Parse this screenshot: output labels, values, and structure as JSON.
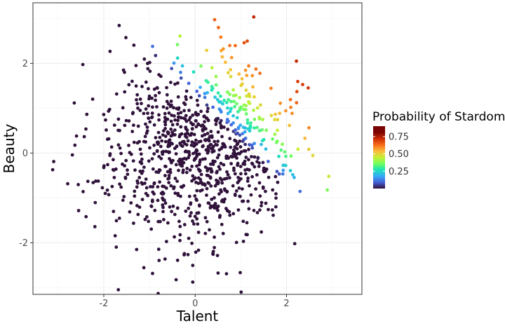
{
  "chart_data": {
    "type": "scatter",
    "xlabel": "Talent",
    "ylabel": "Beauty",
    "xlim": [
      -3.55,
      3.65
    ],
    "ylim": [
      -3.15,
      3.35
    ],
    "x_ticks": [
      -2,
      0,
      2
    ],
    "x_tick_labels": [
      "-2",
      "0",
      "2"
    ],
    "y_ticks": [
      -2,
      0,
      2
    ],
    "y_tick_labels": [
      "-2",
      "0",
      "2"
    ],
    "grid": true,
    "legend": {
      "title": "Probability of Stardom",
      "position": "right",
      "range": [
        0,
        0.9
      ],
      "ticks": [
        0.25,
        0.5,
        0.75
      ],
      "tick_labels": [
        "0.25",
        "0.50",
        "0.75"
      ],
      "colormap": "turbo"
    },
    "point_count": 1000,
    "sample_seed": 20240611,
    "probability_rule": "p = clamp(0.9*(1 - exp(-((x+y) - 1.25)*0.75)), 0, 0.9) for x+y > 1.25 else 0"
  },
  "colors": {
    "panel_border": "#333333",
    "grid_major": "#ebebeb",
    "grid_minor": "#f5f5f5",
    "low_point": "#30123b"
  }
}
